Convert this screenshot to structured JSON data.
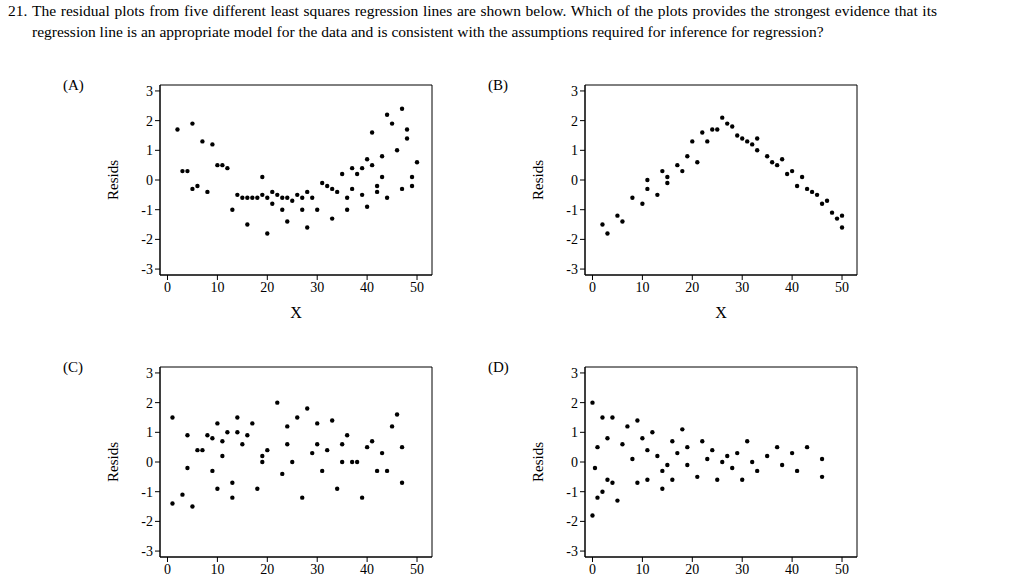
{
  "header": {
    "number": "21.",
    "text": "The residual plots from five different least squares regression lines are shown below. Which of the plots provides the strongest evidence that its regression line is an appropriate model for the data and is consistent with the assumptions required for inference for regression?"
  },
  "chart_data": [
    {
      "type": "scatter",
      "title": "(A)",
      "x_label": "X",
      "y_label": "Resids",
      "color": "#000000",
      "marker": "circle",
      "xlim": [
        -1.5,
        53
      ],
      "ylim": [
        -3.2,
        3.2
      ],
      "xticks": [
        0,
        10,
        20,
        30,
        40,
        50
      ],
      "yticks": [
        -3,
        -2,
        -1,
        0,
        1,
        2,
        3
      ],
      "x": [
        2,
        3,
        4,
        5,
        5,
        6,
        7,
        8,
        9,
        10,
        11,
        12,
        13,
        14,
        15,
        16,
        16,
        17,
        18,
        19,
        19,
        20,
        20,
        21,
        21,
        22,
        23,
        23,
        24,
        24,
        25,
        26,
        27,
        27,
        28,
        28,
        29,
        30,
        31,
        32,
        33,
        33,
        34,
        35,
        36,
        36,
        37,
        37,
        38,
        39,
        39,
        40,
        40,
        41,
        41,
        42,
        42,
        43,
        43,
        44,
        44,
        45,
        46,
        47,
        47,
        48,
        48,
        49,
        49,
        50
      ],
      "values": [
        1.7,
        0.3,
        0.3,
        1.9,
        -0.3,
        -0.2,
        1.3,
        -0.4,
        1.2,
        0.5,
        0.5,
        0.4,
        -1.0,
        -0.5,
        -0.6,
        -1.5,
        -0.6,
        -0.6,
        -0.6,
        0.1,
        -0.5,
        -0.6,
        -1.8,
        -0.4,
        -0.8,
        -0.5,
        -1.0,
        -0.6,
        -1.4,
        -0.6,
        -0.7,
        -0.5,
        -0.6,
        -1.0,
        -1.6,
        -0.4,
        -0.6,
        -1.0,
        -0.1,
        -0.2,
        -1.3,
        -0.3,
        -0.4,
        0.2,
        -1.0,
        -0.6,
        0.4,
        -0.3,
        0.2,
        -0.5,
        0.4,
        0.7,
        -0.9,
        0.5,
        1.6,
        -0.2,
        -0.4,
        0.8,
        0.1,
        -0.6,
        2.2,
        1.9,
        1.0,
        2.4,
        -0.3,
        1.7,
        1.4,
        0.1,
        -0.2,
        0.6
      ]
    },
    {
      "type": "scatter",
      "title": "(B)",
      "x_label": "X",
      "y_label": "Resids",
      "color": "#000000",
      "marker": "circle",
      "xlim": [
        -1.5,
        53
      ],
      "ylim": [
        -3.2,
        3.2
      ],
      "xticks": [
        0,
        10,
        20,
        30,
        40,
        50
      ],
      "yticks": [
        -3,
        -2,
        -1,
        0,
        1,
        2,
        3
      ],
      "x": [
        2,
        3,
        5,
        6,
        8,
        10,
        11,
        11,
        13,
        14,
        15,
        15,
        17,
        18,
        19,
        20,
        21,
        22,
        23,
        24,
        25,
        26,
        27,
        28,
        29,
        30,
        31,
        32,
        33,
        33,
        35,
        36,
        37,
        38,
        39,
        40,
        41,
        42,
        43,
        44,
        45,
        46,
        47,
        48,
        49,
        50,
        50
      ],
      "values": [
        -1.5,
        -1.8,
        -1.2,
        -1.4,
        -0.6,
        -0.8,
        -0.3,
        0.0,
        -0.5,
        0.3,
        -0.1,
        0.1,
        0.5,
        0.3,
        0.8,
        1.3,
        0.6,
        1.6,
        1.3,
        1.7,
        1.7,
        2.1,
        1.9,
        1.8,
        1.5,
        1.4,
        1.3,
        1.2,
        1.0,
        1.4,
        0.8,
        0.6,
        0.5,
        0.7,
        0.2,
        0.3,
        -0.2,
        0.1,
        -0.3,
        -0.4,
        -0.5,
        -0.8,
        -0.7,
        -1.1,
        -1.3,
        -1.2,
        -1.6
      ]
    },
    {
      "type": "scatter",
      "title": "(C)",
      "y_label": "Resids",
      "color": "#000000",
      "marker": "circle",
      "xlim": [
        -1.5,
        53
      ],
      "ylim": [
        -3.2,
        3.2
      ],
      "xticks": [
        0,
        10,
        20,
        30,
        40,
        50
      ],
      "yticks": [
        -3,
        -2,
        -1,
        0,
        1,
        2,
        3
      ],
      "x": [
        1,
        1,
        3,
        4,
        4,
        5,
        6,
        7,
        8,
        9,
        9,
        10,
        10,
        11,
        11,
        12,
        13,
        13,
        14,
        14,
        15,
        16,
        17,
        18,
        19,
        19,
        20,
        22,
        23,
        24,
        24,
        25,
        26,
        27,
        28,
        29,
        30,
        30,
        31,
        32,
        33,
        34,
        35,
        35,
        36,
        37,
        38,
        39,
        40,
        41,
        42,
        43,
        44,
        45,
        46,
        47,
        47
      ],
      "values": [
        1.5,
        -1.4,
        -1.1,
        -0.2,
        0.9,
        -1.5,
        0.4,
        0.4,
        0.9,
        0.8,
        -0.3,
        1.3,
        -0.9,
        0.7,
        0.2,
        1.0,
        -1.2,
        -0.7,
        1.5,
        1.0,
        0.6,
        0.9,
        1.3,
        -0.9,
        0.0,
        0.2,
        0.4,
        2.0,
        -0.4,
        1.2,
        0.6,
        0.0,
        1.5,
        -1.2,
        1.8,
        0.3,
        1.3,
        0.6,
        -0.3,
        0.4,
        1.4,
        -0.9,
        0.0,
        0.6,
        0.9,
        0.0,
        0.0,
        -1.2,
        0.5,
        0.7,
        -0.3,
        0.3,
        -0.3,
        1.2,
        1.6,
        -0.7,
        0.5
      ]
    },
    {
      "type": "scatter",
      "title": "(D)",
      "y_label": "Resids",
      "color": "#000000",
      "marker": "circle",
      "xlim": [
        -1.5,
        53
      ],
      "ylim": [
        -3.2,
        3.2
      ],
      "xticks": [
        0,
        10,
        20,
        30,
        40,
        50
      ],
      "yticks": [
        -3,
        -2,
        -1,
        0,
        1,
        2,
        3
      ],
      "x": [
        0,
        0,
        0.5,
        1,
        1,
        2,
        2,
        3,
        3,
        4,
        4,
        5,
        6,
        7,
        8,
        9,
        9,
        10,
        11,
        11,
        12,
        13,
        14,
        14,
        15,
        16,
        16,
        17,
        18,
        19,
        19,
        21,
        22,
        23,
        24,
        25,
        26,
        27,
        28,
        29,
        30,
        31,
        32,
        33,
        35,
        37,
        38,
        40,
        41,
        43,
        46,
        46
      ],
      "values": [
        2.0,
        -1.8,
        -0.2,
        0.5,
        -1.2,
        1.5,
        -1.0,
        0.8,
        -0.6,
        1.5,
        -0.7,
        -1.3,
        0.6,
        1.2,
        0.1,
        -0.7,
        1.4,
        0.8,
        0.4,
        -0.6,
        1.0,
        0.2,
        -0.3,
        -0.9,
        -0.1,
        0.7,
        -0.6,
        0.3,
        1.1,
        -0.1,
        0.5,
        -0.5,
        0.7,
        0.1,
        0.4,
        -0.6,
        0.0,
        0.2,
        -0.2,
        0.3,
        -0.6,
        0.7,
        0.0,
        -0.3,
        0.2,
        0.5,
        -0.1,
        0.3,
        -0.3,
        0.5,
        0.1,
        -0.5
      ]
    }
  ]
}
